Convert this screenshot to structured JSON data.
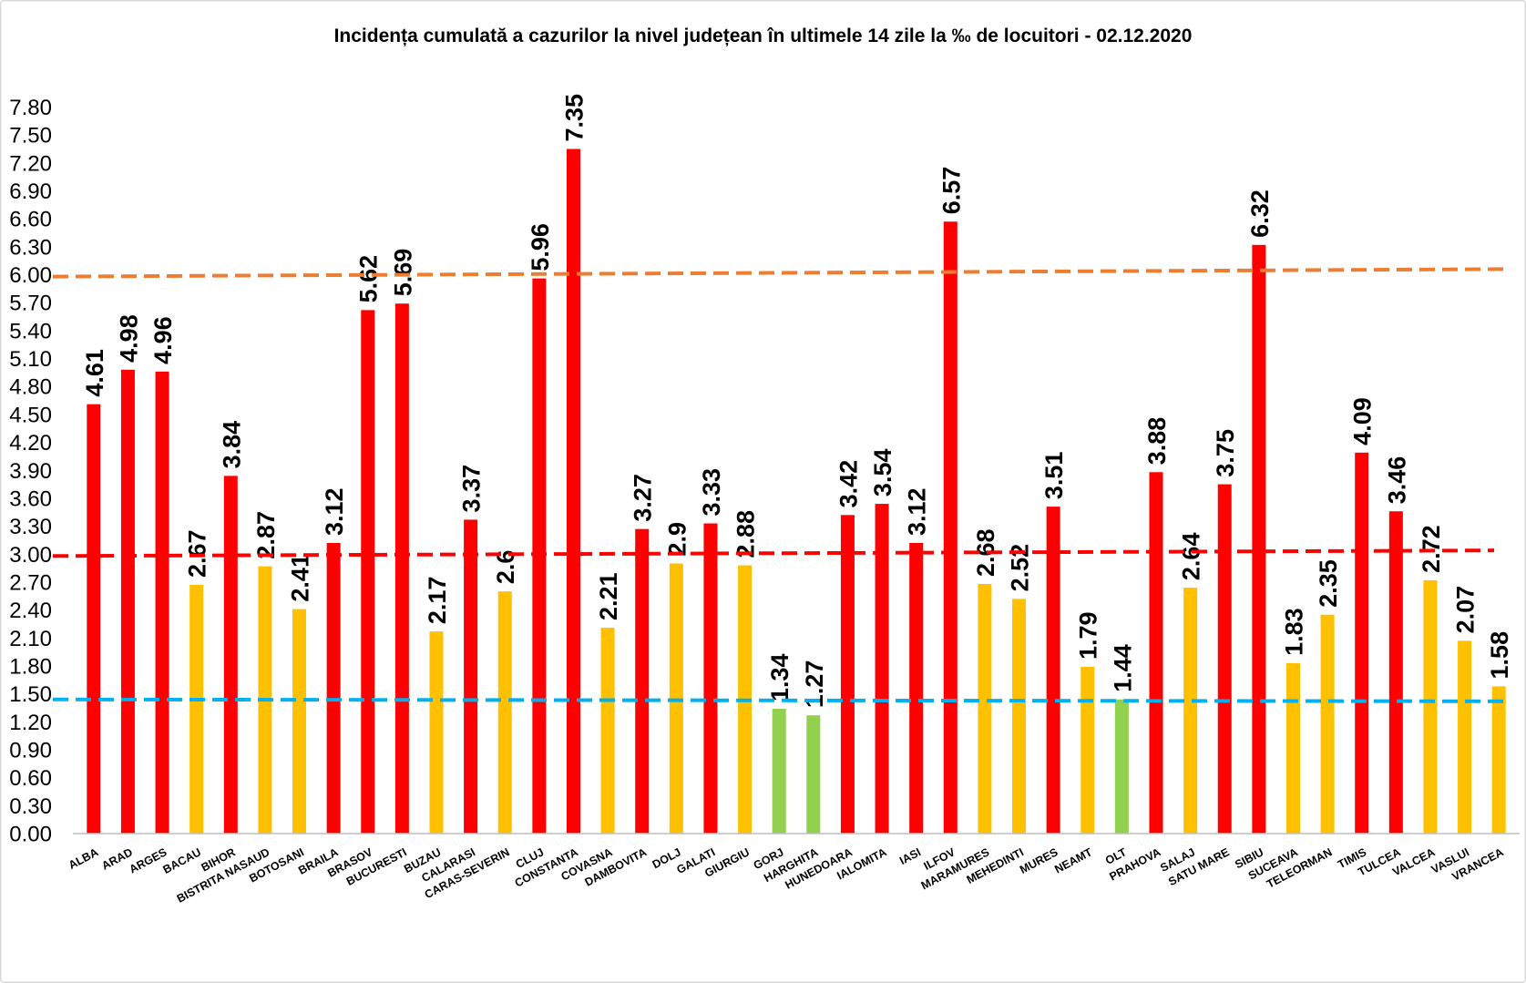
{
  "chart_data": {
    "type": "bar",
    "title": "Incidența cumulată a cazurilor la nivel județean în ultimele 14 zile la ‰ de locuitori - 02.12.2020",
    "categories": [
      "ALBA",
      "ARAD",
      "ARGES",
      "BACAU",
      "BIHOR",
      "BISTRITA NASAUD",
      "BOTOSANI",
      "BRAILA",
      "BRASOV",
      "BUCURESTI",
      "BUZAU",
      "CALARASI",
      "CARAS-SEVERIN",
      "CLUJ",
      "CONSTANTA",
      "COVASNA",
      "DAMBOVITA",
      "DOLJ",
      "GALATI",
      "GIURGIU",
      "GORJ",
      "HARGHITA",
      "HUNEDOARA",
      "IALOMITA",
      "IASI",
      "ILFOV",
      "MARAMURES",
      "MEHEDINTI",
      "MURES",
      "NEAMT",
      "OLT",
      "PRAHOVA",
      "SALAJ",
      "SATU MARE",
      "SIBIU",
      "SUCEAVA",
      "TELEORMAN",
      "TIMIS",
      "TULCEA",
      "VALCEA",
      "VASLUI",
      "VRANCEA"
    ],
    "values": [
      4.61,
      4.98,
      4.96,
      2.67,
      3.84,
      2.87,
      2.41,
      3.12,
      5.62,
      5.69,
      2.17,
      3.37,
      2.6,
      5.96,
      7.35,
      2.21,
      3.27,
      2.9,
      3.33,
      2.88,
      1.34,
      1.27,
      3.42,
      3.54,
      3.12,
      6.57,
      2.68,
      2.52,
      3.51,
      1.79,
      1.44,
      3.88,
      2.64,
      3.75,
      6.32,
      1.83,
      2.35,
      4.09,
      3.46,
      2.72,
      2.07,
      1.58
    ],
    "bar_colors": [
      "#FF0000",
      "#FF0000",
      "#FF0000",
      "#FFC000",
      "#FF0000",
      "#FFC000",
      "#FFC000",
      "#FF0000",
      "#FF0000",
      "#FF0000",
      "#FFC000",
      "#FF0000",
      "#FFC000",
      "#FF0000",
      "#FF0000",
      "#FFC000",
      "#FF0000",
      "#FFC000",
      "#FF0000",
      "#FFC000",
      "#92D050",
      "#92D050",
      "#FF0000",
      "#FF0000",
      "#FF0000",
      "#FF0000",
      "#FFC000",
      "#FFC000",
      "#FF0000",
      "#FFC000",
      "#92D050",
      "#FF0000",
      "#FFC000",
      "#FF0000",
      "#FF0000",
      "#FFC000",
      "#FFC000",
      "#FF0000",
      "#FF0000",
      "#FFC000",
      "#FFC000",
      "#FFC000"
    ],
    "ylim": [
      0,
      7.8
    ],
    "yticks": [
      "0.00",
      "0.30",
      "0.60",
      "0.90",
      "1.20",
      "1.50",
      "1.80",
      "2.10",
      "2.40",
      "2.70",
      "3.00",
      "3.30",
      "3.60",
      "3.90",
      "4.20",
      "4.50",
      "4.80",
      "5.10",
      "5.40",
      "5.70",
      "6.00",
      "6.30",
      "6.60",
      "6.90",
      "7.20",
      "7.50",
      "7.80"
    ],
    "grid": false,
    "legend": "none",
    "reference_lines": [
      {
        "color": "#ED7D31",
        "style": "dashed",
        "y_start": 5.98,
        "y_end": 6.06
      },
      {
        "color": "#FF0000",
        "style": "dashed",
        "y_start": 2.98,
        "y_end": 3.04
      },
      {
        "color": "#00B0F0",
        "style": "dashed",
        "y_start": 1.44,
        "y_end": 1.42
      }
    ]
  }
}
